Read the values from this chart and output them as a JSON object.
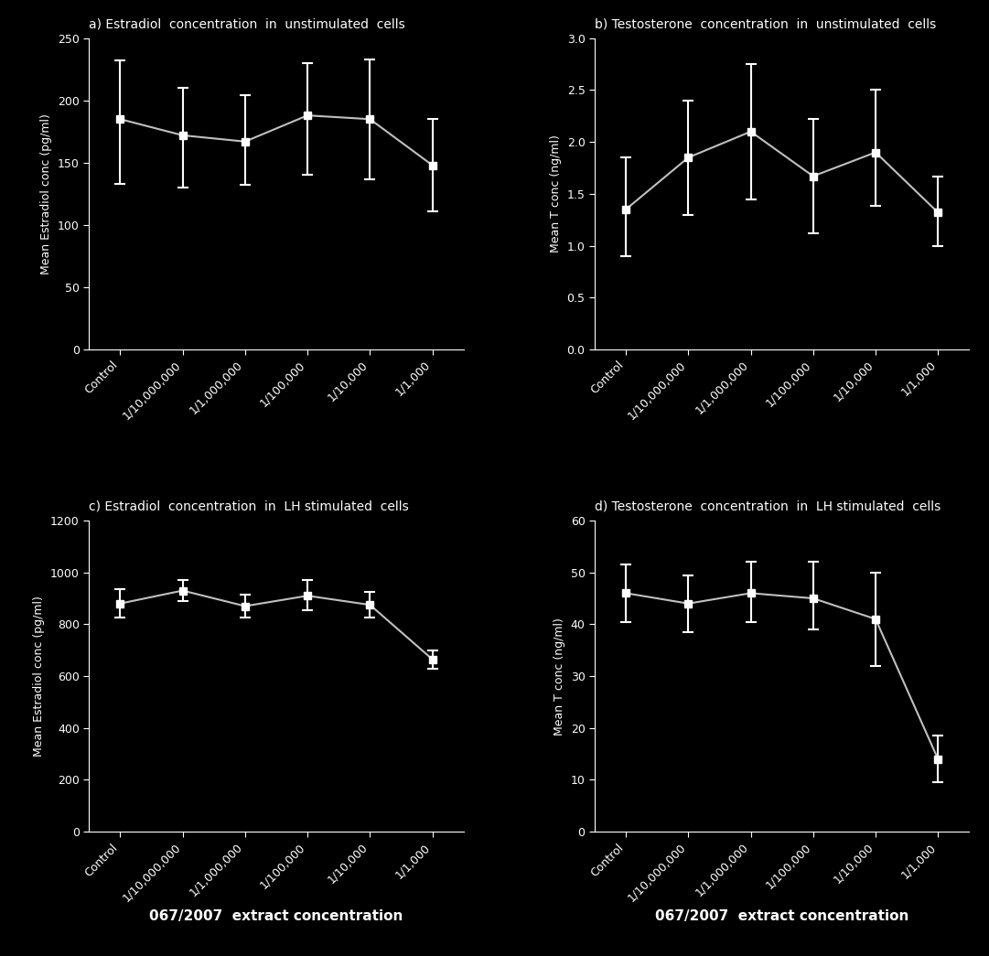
{
  "background_color": "#000000",
  "text_color": "#ffffff",
  "line_color": "#c0c0c0",
  "marker_color": "#ffffff",
  "axes_color": "#ffffff",
  "x_labels": [
    "Control",
    "1/10,000,000",
    "1/1,000,000",
    "1/100,000",
    "1/10,000",
    "1/1,000"
  ],
  "xlabel_bottom": "067/2007  extract concentration",
  "panels": [
    {
      "title": "a) Estradiol  concentration  in  unstimulated  cells",
      "ylabel": "Mean Estradiol conc (pg/ml)",
      "y": [
        185,
        172,
        167,
        188,
        185,
        148
      ],
      "yerr_upper": [
        47,
        38,
        37,
        42,
        48,
        37
      ],
      "yerr_lower": [
        52,
        42,
        35,
        48,
        48,
        37
      ],
      "ylim": [
        0,
        250
      ],
      "yticks": [
        0,
        50,
        100,
        150,
        200,
        250
      ]
    },
    {
      "title": "b) Testosterone  concentration  in  unstimulated  cells",
      "ylabel": "Mean T conc (ng/ml)",
      "y": [
        1.35,
        1.85,
        2.1,
        1.67,
        1.9,
        1.32
      ],
      "yerr_upper": [
        0.5,
        0.55,
        0.65,
        0.55,
        0.6,
        0.35
      ],
      "yerr_lower": [
        0.45,
        0.55,
        0.65,
        0.55,
        0.52,
        0.32
      ],
      "ylim": [
        0.0,
        3.0
      ],
      "yticks": [
        0.0,
        0.5,
        1.0,
        1.5,
        2.0,
        2.5,
        3.0
      ]
    },
    {
      "title": "c) Estradiol  concentration  in  LH stimulated  cells",
      "ylabel": "Mean Estradiol conc (pg/ml)",
      "y": [
        880,
        930,
        870,
        910,
        875,
        665
      ],
      "yerr_upper": [
        55,
        40,
        45,
        60,
        50,
        35
      ],
      "yerr_lower": [
        55,
        40,
        45,
        55,
        50,
        35
      ],
      "ylim": [
        0,
        1200
      ],
      "yticks": [
        0,
        200,
        400,
        600,
        800,
        1000,
        1200
      ]
    },
    {
      "title": "d) Testosterone  concentration  in  LH stimulated  cells",
      "ylabel": "Mean T conc (ng/ml)",
      "y": [
        46.0,
        44.0,
        46.0,
        45.0,
        41.0,
        14.0
      ],
      "yerr_upper": [
        5.5,
        5.5,
        6.0,
        7.0,
        9.0,
        4.5
      ],
      "yerr_lower": [
        5.5,
        5.5,
        5.5,
        6.0,
        9.0,
        4.5
      ],
      "ylim": [
        0,
        60
      ],
      "yticks": [
        0,
        10,
        20,
        30,
        40,
        50,
        60
      ]
    }
  ]
}
